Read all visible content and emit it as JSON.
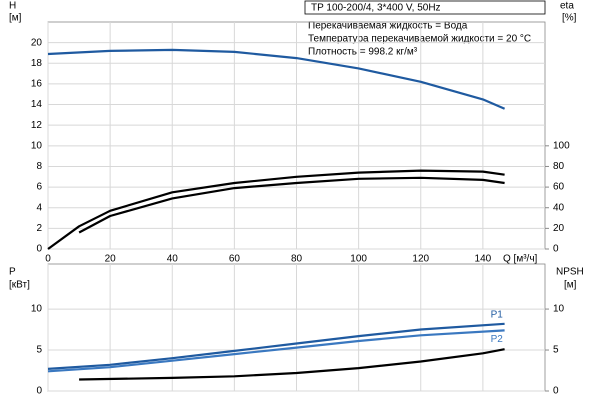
{
  "chart_data": [
    {
      "type": "line",
      "info_box": "TP 100-200/4, 3*400 V, 50Hz",
      "info_lines": [
        "Перекачиваемая жидкость = Вода",
        "Температура перекачиваемой жидкости = 20 °C",
        "Плотность = 998.2 кг/м³"
      ],
      "y_label": "H",
      "y_unit": "[м]",
      "y2_label": "eta",
      "y2_unit": "[%]",
      "x_label": "Q [м³/ч]",
      "xlim": [
        0,
        160
      ],
      "xticks": [
        0,
        20,
        40,
        60,
        80,
        100,
        120,
        140
      ],
      "ylim": [
        0,
        22
      ],
      "yticks": [
        0,
        2,
        4,
        6,
        8,
        10,
        12,
        14,
        16,
        18,
        20
      ],
      "y2lim": [
        0,
        220
      ],
      "y2ticks": [
        0,
        20,
        40,
        60,
        80,
        100
      ],
      "grid": true,
      "series": [
        {
          "color": "#1f5aa0",
          "x": [
            0,
            20,
            40,
            60,
            80,
            100,
            120,
            140,
            147
          ],
          "values": [
            18.9,
            19.2,
            19.3,
            19.1,
            18.5,
            17.5,
            16.2,
            14.5,
            13.6
          ]
        },
        {
          "color": "#000000",
          "axis": "y2",
          "x": [
            0,
            10,
            20,
            40,
            60,
            80,
            100,
            120,
            140,
            147
          ],
          "values": [
            0,
            22,
            37,
            55,
            64,
            70,
            74,
            76,
            75,
            72
          ]
        },
        {
          "color": "#000000",
          "axis": "y2",
          "x": [
            10,
            20,
            40,
            60,
            80,
            100,
            120,
            140,
            147
          ],
          "values": [
            16,
            32,
            49,
            59,
            64,
            68,
            69,
            67,
            64
          ]
        }
      ]
    },
    {
      "type": "line",
      "y_label": "P",
      "y_unit": "[кВт]",
      "y2_label": "NPSH",
      "y2_unit": "[м]",
      "xlim": [
        0,
        160
      ],
      "xticks": [
        0,
        20,
        40,
        60,
        80,
        100,
        120,
        140
      ],
      "ylim": [
        0,
        15.5
      ],
      "yticks": [
        0,
        5,
        10
      ],
      "y2lim": [
        0,
        15.5
      ],
      "y2ticks": [
        0,
        5,
        10
      ],
      "grid": true,
      "series": [
        {
          "name": "P1",
          "color": "#1f5aa0",
          "x": [
            0,
            20,
            40,
            60,
            80,
            100,
            120,
            147
          ],
          "values": [
            2.7,
            3.2,
            4.0,
            4.9,
            5.8,
            6.7,
            7.5,
            8.2
          ]
        },
        {
          "name": "P2",
          "color": "#3a78c0",
          "x": [
            0,
            20,
            40,
            60,
            80,
            100,
            120,
            147
          ],
          "values": [
            2.4,
            2.9,
            3.7,
            4.5,
            5.3,
            6.1,
            6.8,
            7.4
          ]
        },
        {
          "color": "#000000",
          "axis": "y2",
          "x": [
            10,
            40,
            60,
            80,
            100,
            120,
            140,
            147
          ],
          "values": [
            1.4,
            1.6,
            1.8,
            2.2,
            2.8,
            3.6,
            4.6,
            5.1
          ]
        }
      ]
    }
  ]
}
